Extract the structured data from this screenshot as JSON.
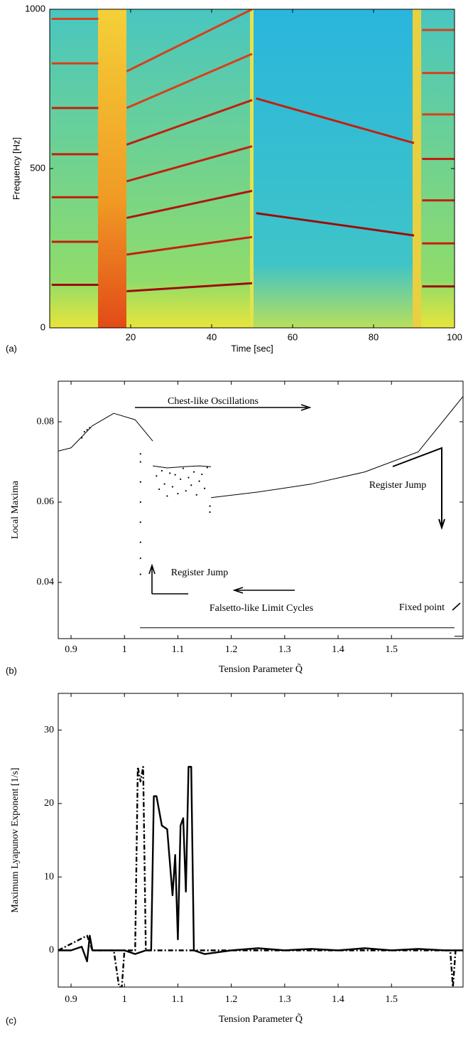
{
  "chart_data": [
    {
      "type": "line",
      "panel_label": "(a)",
      "xlabel": "Time [sec]",
      "ylabel": "Frequency [Hz]",
      "xlim": [
        0,
        100
      ],
      "ylim": [
        0,
        1000
      ],
      "xticks": [
        20,
        40,
        60,
        80,
        100
      ],
      "yticks": [
        0,
        500,
        1000
      ],
      "series": [
        {
          "color": "#9a0d0d",
          "x": [
            0.5,
            12
          ],
          "values": [
            135,
            135
          ]
        },
        {
          "color": "#c2200f",
          "x": [
            0.5,
            12
          ],
          "values": [
            270,
            270
          ]
        },
        {
          "color": "#c2200f",
          "x": [
            0.5,
            12
          ],
          "values": [
            410,
            410
          ]
        },
        {
          "color": "#c2200f",
          "x": [
            0.5,
            12
          ],
          "values": [
            545,
            545
          ]
        },
        {
          "color": "#c2200f",
          "x": [
            0.5,
            12
          ],
          "values": [
            690,
            690
          ]
        },
        {
          "color": "#d8401a",
          "x": [
            0.5,
            12
          ],
          "values": [
            830,
            830
          ]
        },
        {
          "color": "#d8401a",
          "x": [
            0.5,
            12
          ],
          "values": [
            970,
            970
          ]
        },
        {
          "color": "#9a0d0d",
          "x": [
            19,
            50
          ],
          "values": [
            115,
            140
          ]
        },
        {
          "color": "#c2200f",
          "x": [
            19,
            50
          ],
          "values": [
            230,
            285
          ]
        },
        {
          "color": "#b0150f",
          "x": [
            19,
            50
          ],
          "values": [
            345,
            430
          ]
        },
        {
          "color": "#c2200f",
          "x": [
            19,
            50
          ],
          "values": [
            460,
            570
          ]
        },
        {
          "color": "#c2200f",
          "x": [
            19,
            50
          ],
          "values": [
            575,
            715
          ]
        },
        {
          "color": "#d8401a",
          "x": [
            19,
            50
          ],
          "values": [
            690,
            860
          ]
        },
        {
          "color": "#d8401a",
          "x": [
            19,
            50
          ],
          "values": [
            805,
            1000
          ]
        },
        {
          "color": "#9a0d0d",
          "x": [
            51,
            90
          ],
          "values": [
            360,
            290
          ]
        },
        {
          "color": "#c2200f",
          "x": [
            51,
            90
          ],
          "values": [
            720,
            580
          ]
        },
        {
          "color": "#9a0d0d",
          "x": [
            92,
            100
          ],
          "values": [
            130,
            130
          ]
        },
        {
          "color": "#c2200f",
          "x": [
            92,
            100
          ],
          "values": [
            265,
            265
          ]
        },
        {
          "color": "#c2200f",
          "x": [
            92,
            100
          ],
          "values": [
            400,
            400
          ]
        },
        {
          "color": "#c2200f",
          "x": [
            92,
            100
          ],
          "values": [
            530,
            530
          ]
        },
        {
          "color": "#d8401a",
          "x": [
            92,
            100
          ],
          "values": [
            670,
            670
          ]
        },
        {
          "color": "#d8401a",
          "x": [
            92,
            100
          ],
          "values": [
            800,
            800
          ]
        },
        {
          "color": "#d8401a",
          "x": [
            92,
            100
          ],
          "values": [
            935,
            935
          ]
        }
      ]
    },
    {
      "type": "bifurcation",
      "panel_label": "(b)",
      "xlabel": "Tension Parameter Q̃",
      "ylabel": "Local Maxima",
      "xlim": [
        0.876,
        1.634
      ],
      "ylim": [
        0.026,
        0.0901
      ],
      "xticks": [
        0.9,
        1,
        1.1,
        1.2,
        1.3,
        1.4,
        1.5
      ],
      "yticks": [
        0.04,
        0.06,
        0.08
      ],
      "annotations": [
        "Chest-like Oscillations",
        "Register Jump",
        "Register Jump",
        "Falsetto-like Limit Cycles",
        "Fixed point"
      ],
      "series": [
        {
          "style": "line",
          "color": "#000000",
          "x": [
            0.876,
            0.9,
            0.94,
            0.98,
            1.02,
            1.053
          ],
          "values": [
            0.0727,
            0.0735,
            0.079,
            0.0821,
            0.0805,
            0.0752
          ]
        },
        {
          "style": "line",
          "color": "#000000",
          "x": [
            1.053,
            1.08,
            1.11,
            1.14,
            1.162
          ],
          "values": [
            0.069,
            0.0685,
            0.0688,
            0.069,
            0.0688
          ]
        },
        {
          "style": "dots",
          "color": "#000000",
          "x": [
            0.92,
            0.925,
            0.93,
            0.935,
            1.03,
            1.03,
            1.03,
            1.03,
            1.03,
            1.03,
            1.03,
            1.03,
            1.06,
            1.065,
            1.07,
            1.075,
            1.08,
            1.085,
            1.09,
            1.095,
            1.1,
            1.105,
            1.11,
            1.115,
            1.12,
            1.125,
            1.13,
            1.135,
            1.14,
            1.145,
            1.15,
            1.155,
            1.16,
            1.16
          ],
          "values": [
            0.076,
            0.0775,
            0.078,
            0.0785,
            0.042,
            0.046,
            0.05,
            0.055,
            0.06,
            0.065,
            0.07,
            0.072,
            0.0665,
            0.0632,
            0.0678,
            0.0645,
            0.0615,
            0.0672,
            0.0638,
            0.0668,
            0.0621,
            0.0657,
            0.0684,
            0.0628,
            0.0661,
            0.0642,
            0.0675,
            0.0618,
            0.0652,
            0.0669,
            0.0634,
            0.0686,
            0.0575,
            0.059
          ]
        },
        {
          "style": "line",
          "color": "#000000",
          "x": [
            1.162,
            1.25,
            1.35,
            1.45,
            1.55,
            1.634
          ],
          "values": [
            0.0611,
            0.0625,
            0.0645,
            0.0675,
            0.0725,
            0.0863
          ]
        },
        {
          "style": "line",
          "color": "#000000",
          "x": [
            1.029,
            1.618
          ],
          "values": [
            0.0287,
            0.0287
          ]
        },
        {
          "style": "line",
          "color": "#000000",
          "x": [
            1.618,
            1.634
          ],
          "values": [
            0.0266,
            0.0266
          ]
        }
      ]
    },
    {
      "type": "line",
      "panel_label": "(c)",
      "xlabel": "Tension Parameter Q̃",
      "ylabel": "Maximum Lyapunov Exponent [1/s]",
      "xlim": [
        0.876,
        1.634
      ],
      "ylim": [
        -5,
        35
      ],
      "xticks": [
        0.9,
        1,
        1.1,
        1.2,
        1.3,
        1.4,
        1.5
      ],
      "yticks": [
        0,
        10,
        20,
        30
      ],
      "series": [
        {
          "style": "solid",
          "color": "#000000",
          "x": [
            0.876,
            0.9,
            0.92,
            0.93,
            0.935,
            0.94,
            0.96,
            0.98,
            0.99,
            1.0,
            1.02,
            1.04,
            1.05,
            1.055,
            1.06,
            1.065,
            1.07,
            1.08,
            1.09,
            1.095,
            1.1,
            1.105,
            1.11,
            1.115,
            1.12,
            1.125,
            1.13,
            1.15,
            1.2,
            1.25,
            1.3,
            1.35,
            1.4,
            1.45,
            1.5,
            1.55,
            1.6,
            1.634
          ],
          "values": [
            0,
            0,
            0.5,
            -1.5,
            2,
            0,
            0,
            0,
            0,
            0,
            -0.5,
            0,
            0,
            21,
            21,
            19,
            17,
            16.5,
            7.5,
            13,
            1.5,
            17,
            18,
            8,
            25,
            25,
            0,
            -0.5,
            0,
            0.3,
            0,
            0.2,
            0,
            0.3,
            0,
            0.2,
            0,
            0
          ]
        },
        {
          "style": "dashdot",
          "color": "#000000",
          "x": [
            0.876,
            0.93,
            0.94,
            0.98,
            0.99,
            0.995,
            1.0,
            1.02,
            1.025,
            1.03,
            1.035,
            1.04,
            1.1,
            1.2,
            1.3,
            1.4,
            1.5,
            1.61,
            1.615,
            1.62,
            1.634
          ],
          "values": [
            0,
            2,
            0,
            0,
            -5,
            -5,
            0,
            0,
            25,
            23,
            25,
            0,
            0,
            0,
            0,
            0,
            0,
            0,
            -5,
            0,
            0
          ]
        }
      ]
    }
  ]
}
